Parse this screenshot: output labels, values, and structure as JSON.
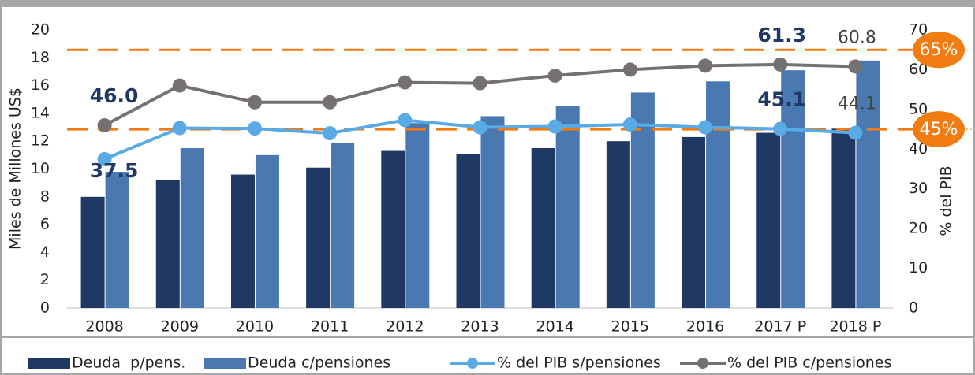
{
  "chart_data": {
    "type": "bar-line",
    "ylabel": "Miles de Millones US$",
    "y2label": "% del PIB",
    "categories": [
      "2008",
      "2009",
      "2010",
      "2011",
      "2012",
      "2013",
      "2014",
      "2015",
      "2016",
      "2017 P",
      "2018 P"
    ],
    "series": [
      {
        "name": "Deuda  p/pens.",
        "type": "bar",
        "color": "#1f3864",
        "values": [
          8.0,
          9.2,
          9.6,
          10.1,
          11.3,
          11.1,
          11.5,
          12.0,
          12.3,
          12.6,
          12.9
        ]
      },
      {
        "name": "Deuda c/pensiones",
        "type": "bar",
        "color": "#4a78b0",
        "values": [
          9.8,
          11.5,
          11.0,
          11.9,
          13.3,
          13.8,
          14.5,
          15.5,
          16.3,
          17.1,
          17.8
        ]
      },
      {
        "name": "% del PIB s/pensiones",
        "type": "line",
        "axis": "y2",
        "color": "#5aaae6",
        "values": [
          37.5,
          45.3,
          45.2,
          44.0,
          47.3,
          45.5,
          45.7,
          46.2,
          45.5,
          45.1,
          44.1
        ],
        "value_labels": [
          "37.5",
          null,
          null,
          null,
          null,
          null,
          null,
          null,
          null,
          "45.1",
          "44.1"
        ]
      },
      {
        "name": "% del PIB c/pensiones",
        "type": "line",
        "axis": "y2",
        "color": "#767171",
        "values": [
          46.0,
          56.0,
          51.8,
          51.8,
          56.8,
          56.6,
          58.5,
          60.0,
          61.0,
          61.3,
          60.8
        ],
        "value_labels": [
          "46.0",
          null,
          null,
          null,
          null,
          null,
          null,
          null,
          null,
          "61.3",
          "60.8"
        ]
      }
    ],
    "ylim": [
      0,
      20
    ],
    "yticks": [
      0,
      2,
      4,
      6,
      8,
      10,
      12,
      14,
      16,
      18,
      20
    ],
    "y2lim": [
      0,
      70
    ],
    "y2ticks": [
      0,
      10,
      20,
      30,
      40,
      50,
      60,
      70
    ],
    "reference_lines": [
      {
        "value": 65,
        "label": "65%",
        "color": "#f07c12"
      },
      {
        "value": 45,
        "label": "45%",
        "color": "#f07c12"
      }
    ],
    "legend": "bottom"
  }
}
